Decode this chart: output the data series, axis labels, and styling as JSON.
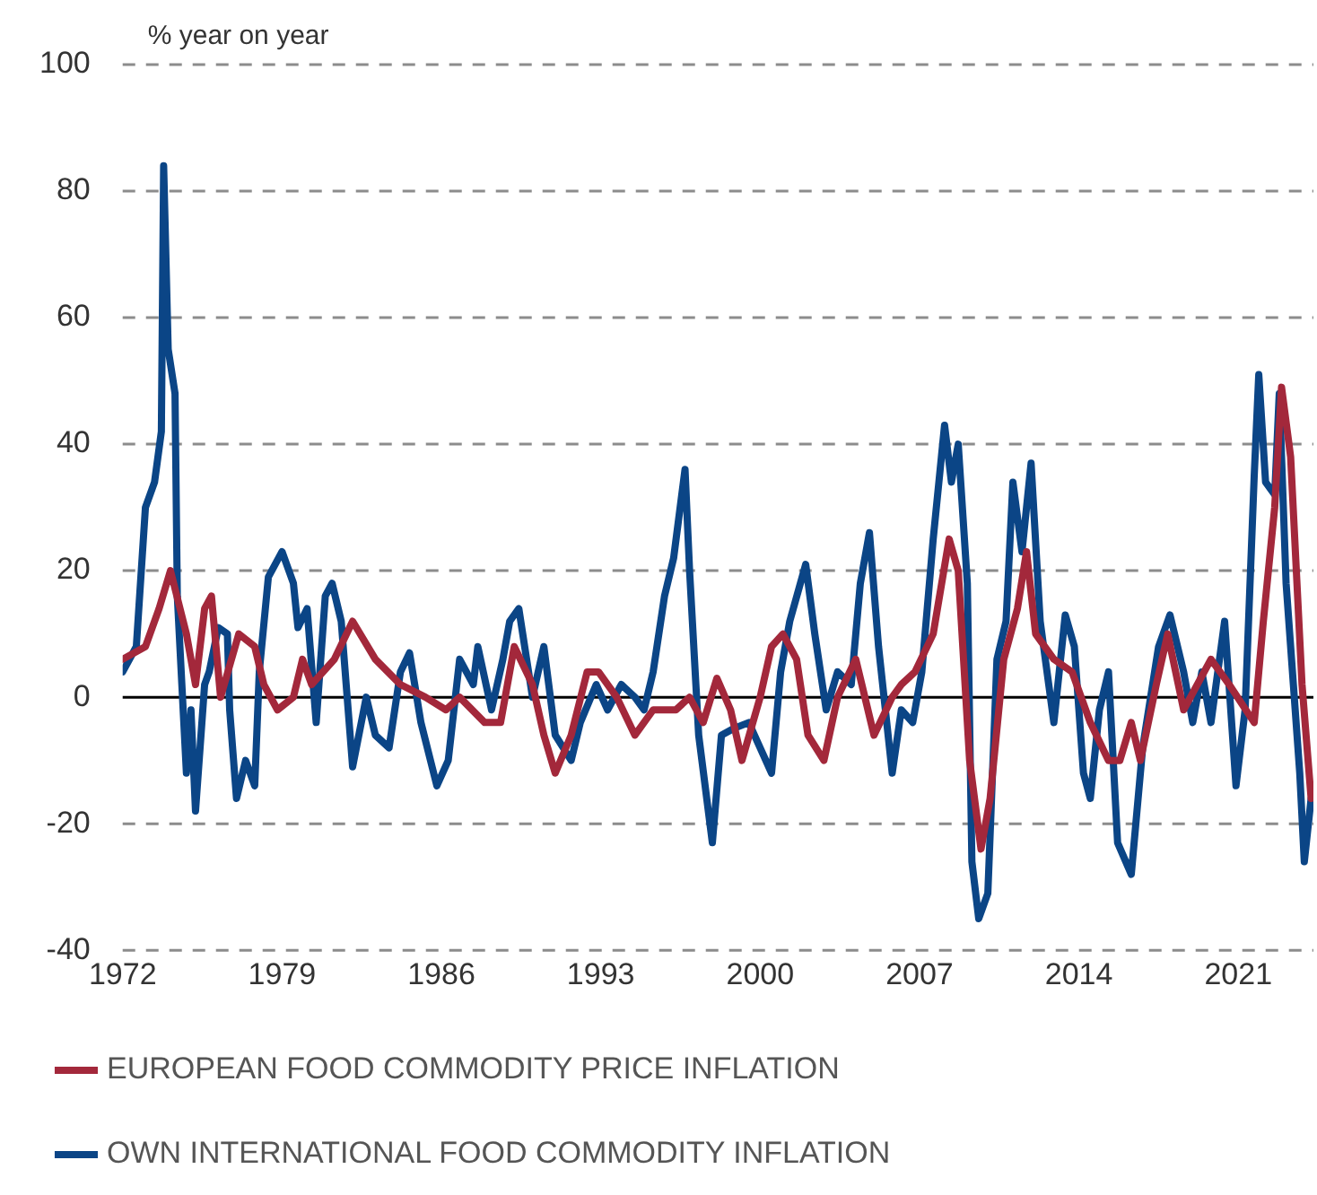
{
  "chart_data": {
    "type": "line",
    "ylabel": "% year on year",
    "xlim": [
      1972,
      2024.3
    ],
    "xticks": [
      1972,
      1979,
      1986,
      1993,
      2000,
      2007,
      2014,
      2021
    ],
    "ylim": [
      -40,
      100
    ],
    "yticks": [
      -40,
      -20,
      0,
      20,
      40,
      60,
      80,
      100
    ],
    "grid": "y",
    "legend": "bottom",
    "marker": "none",
    "line_style": "solid",
    "series": [
      {
        "name": "EUROPEAN FOOD COMMODITY PRICE INFLATION",
        "color": "#a3283b",
        "x": [
          1972.0,
          1973.0,
          1973.6,
          1974.1,
          1974.8,
          1975.2,
          1975.6,
          1975.9,
          1976.3,
          1977.1,
          1977.8,
          1978.2,
          1978.8,
          1979.5,
          1979.9,
          1980.3,
          1981.3,
          1982.1,
          1983.1,
          1984.2,
          1985.3,
          1986.2,
          1986.8,
          1987.9,
          1988.6,
          1989.2,
          1990.0,
          1990.5,
          1991.0,
          1991.7,
          1992.4,
          1992.9,
          1993.7,
          1994.5,
          1995.3,
          1996.3,
          1996.9,
          1997.5,
          1998.1,
          1998.7,
          1999.2,
          2000.0,
          2000.5,
          2001.0,
          2001.6,
          2002.1,
          2002.8,
          2003.4,
          2004.2,
          2005.0,
          2005.8,
          2006.2,
          2006.8,
          2007.6,
          2008.3,
          2008.7,
          2009.2,
          2009.7,
          2010.1,
          2010.7,
          2011.3,
          2011.7,
          2012.1,
          2012.9,
          2013.7,
          2014.5,
          2015.3,
          2015.8,
          2016.3,
          2016.7,
          2017.4,
          2017.9,
          2018.6,
          2019.8,
          2020.6,
          2021.7,
          2022.1,
          2022.6,
          2022.9,
          2023.3,
          2023.8,
          2024.2
        ],
        "values": [
          6,
          8,
          14,
          20,
          10,
          2,
          14,
          16,
          0,
          10,
          8,
          2,
          -2,
          0,
          6,
          2,
          6,
          12,
          6,
          2,
          0,
          -2,
          0,
          -4,
          -4,
          8,
          2,
          -6,
          -12,
          -6,
          4,
          4,
          0,
          -6,
          -2,
          -2,
          0,
          -4,
          3,
          -2,
          -10,
          0,
          8,
          10,
          6,
          -6,
          -10,
          0,
          6,
          -6,
          0,
          2,
          4,
          10,
          25,
          20,
          -10,
          -24,
          -16,
          6,
          14,
          23,
          10,
          6,
          4,
          -4,
          -10,
          -10,
          -4,
          -10,
          2,
          10,
          -2,
          6,
          2,
          -4,
          12,
          30,
          49,
          38,
          2,
          -16
        ]
      },
      {
        "name": "OWN INTERNATIONAL FOOD COMMODITY INFLATION",
        "color": "#0b4586",
        "x": [
          1972.0,
          1972.6,
          1973.0,
          1973.4,
          1973.7,
          1973.8,
          1974.0,
          1974.3,
          1974.4,
          1974.8,
          1975.0,
          1975.2,
          1975.6,
          1975.8,
          1976.2,
          1976.6,
          1976.7,
          1977.0,
          1977.4,
          1977.8,
          1978.0,
          1978.4,
          1979.0,
          1979.5,
          1979.7,
          1980.1,
          1980.5,
          1980.9,
          1981.2,
          1981.6,
          1982.1,
          1982.7,
          1983.1,
          1983.7,
          1984.2,
          1984.6,
          1985.1,
          1985.8,
          1986.3,
          1986.8,
          1987.4,
          1987.6,
          1988.2,
          1988.7,
          1989.0,
          1989.4,
          1990.0,
          1990.5,
          1991.0,
          1991.7,
          1992.1,
          1992.8,
          1993.3,
          1993.9,
          1994.5,
          1994.9,
          1995.3,
          1995.8,
          1996.2,
          1996.7,
          1996.9,
          1997.3,
          1997.9,
          1998.3,
          1998.8,
          1999.5,
          2000.0,
          2000.5,
          2000.9,
          2001.3,
          2002.0,
          2002.4,
          2002.9,
          2003.4,
          2004.0,
          2004.4,
          2004.8,
          2005.2,
          2005.8,
          2006.2,
          2006.7,
          2007.1,
          2007.6,
          2008.1,
          2008.4,
          2008.7,
          2009.1,
          2009.3,
          2009.6,
          2010.0,
          2010.4,
          2010.8,
          2011.1,
          2011.5,
          2011.9,
          2012.3,
          2012.9,
          2013.4,
          2013.8,
          2014.2,
          2014.5,
          2014.9,
          2015.3,
          2015.7,
          2016.3,
          2016.8,
          2017.5,
          2018.0,
          2018.6,
          2019.0,
          2019.4,
          2019.8,
          2020.4,
          2020.9,
          2021.3,
          2021.7,
          2021.9,
          2022.2,
          2022.6,
          2022.8,
          2023.1,
          2023.7,
          2023.9,
          2024.2
        ],
        "values": [
          4,
          8,
          30,
          34,
          42,
          84,
          55,
          48,
          16,
          -12,
          -2,
          -18,
          2,
          4,
          11,
          10,
          -2,
          -16,
          -10,
          -14,
          4,
          19,
          23,
          18,
          11,
          14,
          -4,
          16,
          18,
          12,
          -11,
          0,
          -6,
          -8,
          4,
          7,
          -4,
          -14,
          -10,
          6,
          2,
          8,
          -2,
          6,
          12,
          14,
          0,
          8,
          -6,
          -10,
          -4,
          2,
          -2,
          2,
          0,
          -2,
          4,
          16,
          22,
          36,
          20,
          -6,
          -23,
          -6,
          -5,
          -4,
          -8,
          -12,
          4,
          12,
          21,
          10,
          -2,
          4,
          2,
          18,
          26,
          8,
          -12,
          -2,
          -4,
          4,
          25,
          43,
          34,
          40,
          18,
          -26,
          -35,
          -31,
          6,
          12,
          34,
          23,
          37,
          12,
          -4,
          13,
          8,
          -12,
          -16,
          -2,
          4,
          -23,
          -28,
          -8,
          8,
          13,
          4,
          -4,
          4,
          -4,
          12,
          -14,
          -2,
          35,
          51,
          34,
          32,
          48,
          18,
          -12,
          -26,
          -16
        ]
      }
    ]
  }
}
